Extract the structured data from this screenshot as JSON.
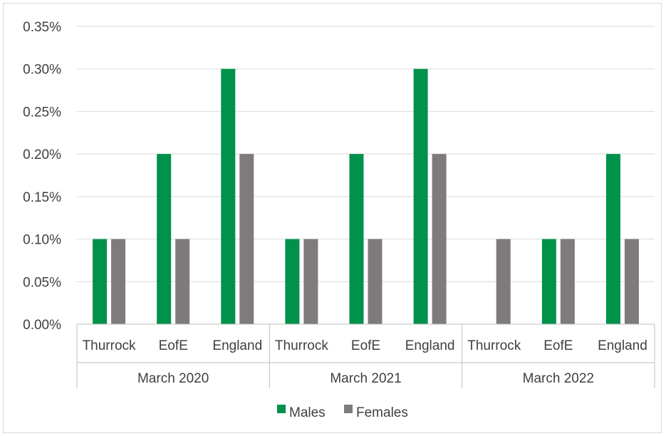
{
  "chart_data": {
    "type": "bar",
    "groups": [
      {
        "label": "March 2020",
        "categories": [
          "Thurrock",
          "EofE",
          "England"
        ]
      },
      {
        "label": "March 2021",
        "categories": [
          "Thurrock",
          "EofE",
          "England"
        ]
      },
      {
        "label": "March 2022",
        "categories": [
          "Thurrock",
          "EofE",
          "England"
        ]
      }
    ],
    "series": [
      {
        "name": "Males",
        "color": "#00914a",
        "values": [
          0.1,
          0.2,
          0.3,
          0.1,
          0.2,
          0.3,
          0.0,
          0.1,
          0.2
        ]
      },
      {
        "name": "Females",
        "color": "#7f7a7c",
        "values": [
          0.1,
          0.1,
          0.2,
          0.1,
          0.1,
          0.2,
          0.1,
          0.1,
          0.1
        ]
      }
    ],
    "ylim": [
      0,
      0.35
    ],
    "yticks": [
      "0.00%",
      "0.05%",
      "0.10%",
      "0.15%",
      "0.20%",
      "0.25%",
      "0.30%",
      "0.35%"
    ],
    "ytick_step": 0.05,
    "grid": true,
    "legend_position": "bottom"
  }
}
